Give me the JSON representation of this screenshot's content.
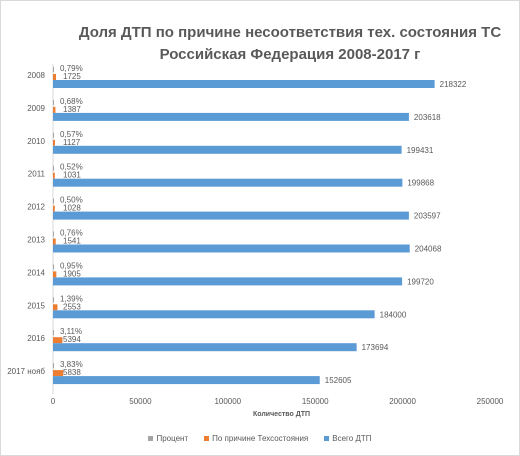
{
  "chart_data": {
    "type": "bar",
    "orientation": "horizontal",
    "title_line1": "Доля ДТП по причине несоответствия тех. состояния ТС",
    "title_line2": "Российская Федерация 2008-2017 г",
    "xlabel": "Количество ДТП",
    "ylabel": "",
    "xlim": [
      0,
      250000
    ],
    "xticks": [
      "0",
      "50000",
      "100000",
      "150000",
      "200000",
      "250000"
    ],
    "grid": false,
    "legend_position": "bottom",
    "categories": [
      "2008",
      "2009",
      "2010",
      "2011",
      "2012",
      "2013",
      "2014",
      "2015",
      "2016",
      "2017 нояб"
    ],
    "series": [
      {
        "name": "Процент",
        "color": "#a5a5a5",
        "values": [
          0.0079,
          0.0068,
          0.0057,
          0.0052,
          0.005,
          0.0076,
          0.0095,
          0.0139,
          0.0311,
          0.0383
        ],
        "labels": [
          "0,79%",
          "0,68%",
          "0,57%",
          "0,52%",
          "0,50%",
          "0,76%",
          "0,95%",
          "1,39%",
          "3,11%",
          "3,83%"
        ]
      },
      {
        "name": "По причине Техсостояния",
        "color": "#ed7d31",
        "values": [
          1725,
          1387,
          1127,
          1031,
          1028,
          1541,
          1905,
          2553,
          5394,
          5838
        ],
        "labels": [
          "1725",
          "1387",
          "1127",
          "1031",
          "1028",
          "1541",
          "1905",
          "2553",
          "5394",
          "5838"
        ]
      },
      {
        "name": "Всего ДТП",
        "color": "#5b9bd5",
        "values": [
          218322,
          203618,
          199431,
          199868,
          203597,
          204068,
          199720,
          184000,
          173694,
          152605
        ],
        "labels": [
          "218322",
          "203618",
          "199431",
          "199868",
          "203597",
          "204068",
          "199720",
          "184000",
          "173694",
          "152605"
        ]
      }
    ]
  }
}
